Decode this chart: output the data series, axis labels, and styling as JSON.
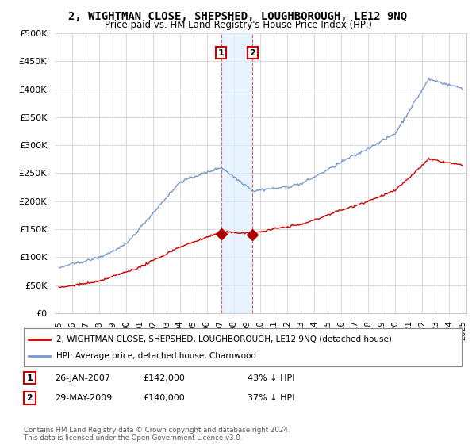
{
  "title": "2, WIGHTMAN CLOSE, SHEPSHED, LOUGHBOROUGH, LE12 9NQ",
  "subtitle": "Price paid vs. HM Land Registry's House Price Index (HPI)",
  "legend_line1": "2, WIGHTMAN CLOSE, SHEPSHED, LOUGHBOROUGH, LE12 9NQ (detached house)",
  "legend_line2": "HPI: Average price, detached house, Charnwood",
  "sale1_date": "26-JAN-2007",
  "sale1_price": "£142,000",
  "sale1_hpi": "43% ↓ HPI",
  "sale2_date": "29-MAY-2009",
  "sale2_price": "£140,000",
  "sale2_hpi": "37% ↓ HPI",
  "copyright": "Contains HM Land Registry data © Crown copyright and database right 2024.\nThis data is licensed under the Open Government Licence v3.0.",
  "sale1_x": 2007.07,
  "sale1_y": 142000,
  "sale2_x": 2009.41,
  "sale2_y": 140000,
  "property_color": "#cc0000",
  "hpi_color": "#7799cc",
  "sale_marker_color": "#aa0000",
  "ylim": [
    0,
    500000
  ],
  "yticks": [
    0,
    50000,
    100000,
    150000,
    200000,
    250000,
    300000,
    350000,
    400000,
    450000,
    500000
  ],
  "ytick_labels": [
    "£0",
    "£50K",
    "£100K",
    "£150K",
    "£200K",
    "£250K",
    "£300K",
    "£350K",
    "£400K",
    "£450K",
    "£500K"
  ],
  "xlim": [
    1994.7,
    2025.3
  ],
  "background_color": "#ffffff",
  "grid_color": "#cccccc"
}
